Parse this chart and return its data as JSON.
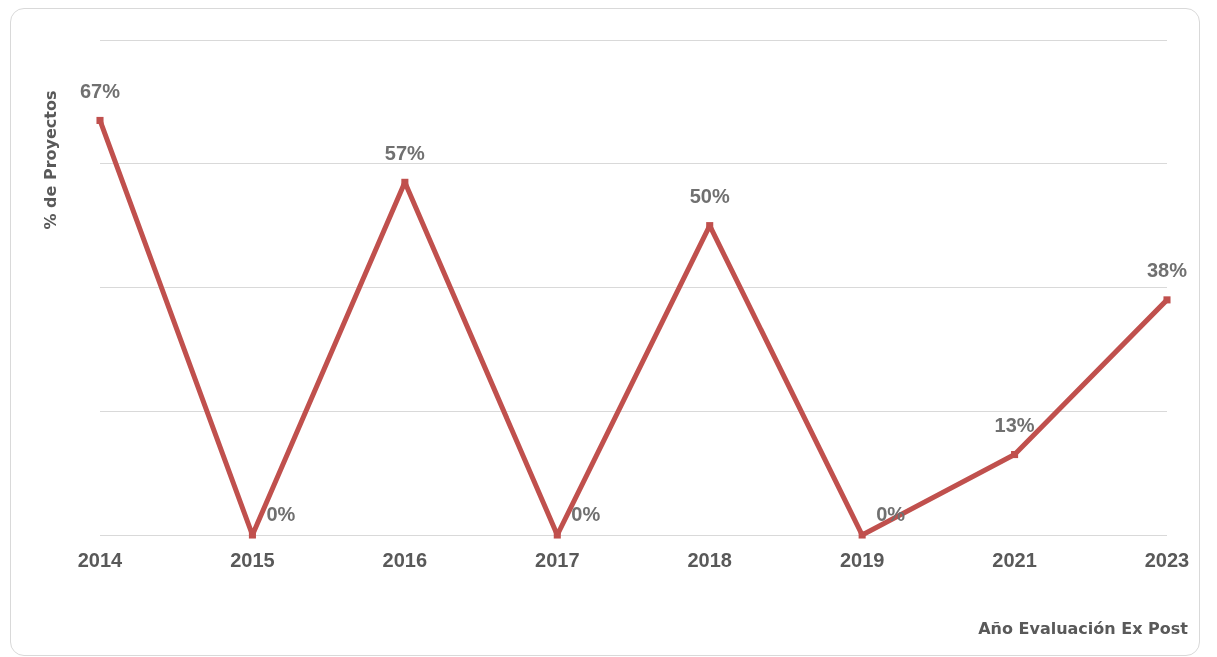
{
  "chart_data": {
    "type": "line",
    "xlabel": "Año Evaluación Ex Post",
    "ylabel": "% de Proyectos",
    "categories": [
      "2014",
      "2015",
      "2016",
      "2017",
      "2018",
      "2019",
      "2021",
      "2023"
    ],
    "series": [
      {
        "color": "#c0504d",
        "values": [
          67,
          0,
          57,
          0,
          50,
          0,
          13,
          38
        ],
        "value_labels": [
          "67%",
          "0%",
          "57%",
          "0%",
          "50%",
          "0%",
          "13%",
          "38%"
        ]
      }
    ],
    "tick_labels": "x",
    "grid": "y",
    "legend": false,
    "marker": "square",
    "line_style": "solid"
  }
}
